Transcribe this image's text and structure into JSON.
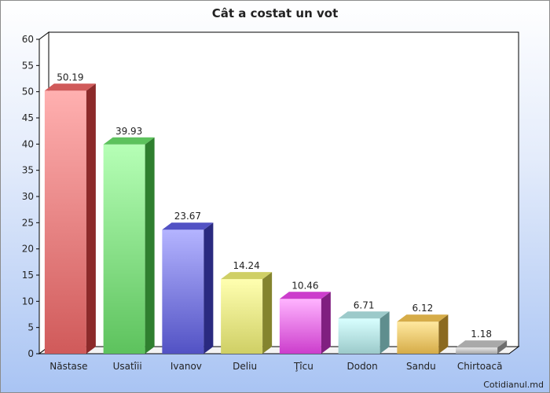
{
  "chart_data": {
    "type": "bar",
    "title": "Cât a costat un vot",
    "credit": "Cotidianul.md",
    "categories": [
      "Năstase",
      "Usatîii",
      "Ivanov",
      "Deliu",
      "Ţîcu",
      "Dodon",
      "Sandu",
      "Chirtoacă"
    ],
    "values": [
      50.19,
      39.93,
      23.67,
      14.24,
      10.46,
      6.71,
      6.12,
      1.18
    ],
    "value_labels": [
      "50.19",
      "39.93",
      "23.67",
      "14.24",
      "10.46",
      "6.71",
      "6.12",
      "1.18"
    ],
    "ylim": [
      0,
      60
    ],
    "yticks": [
      "0",
      "5",
      "10",
      "15",
      "20",
      "25",
      "30",
      "35",
      "40",
      "45",
      "50",
      "55",
      "60"
    ],
    "xlabel": "",
    "ylabel": "",
    "grid": false,
    "colors": [
      {
        "light": "#ffb0b0",
        "main": "#d05a5a",
        "dark": "#8c2a2a"
      },
      {
        "light": "#b6ffb6",
        "main": "#5dc25d",
        "dark": "#2f7f2f"
      },
      {
        "light": "#b4b4ff",
        "main": "#5252c4",
        "dark": "#2a2a80"
      },
      {
        "light": "#ffffb0",
        "main": "#cfcf65",
        "dark": "#84842e"
      },
      {
        "light": "#ffb4ff",
        "main": "#cc3dcc",
        "dark": "#801f80"
      },
      {
        "light": "#d8ffff",
        "main": "#9ccaca",
        "dark": "#5f8e8e"
      },
      {
        "light": "#ffe9a0",
        "main": "#d6ac48",
        "dark": "#8b6a20"
      },
      {
        "light": "#e6e6e6",
        "main": "#a9a9a9",
        "dark": "#6d6d6d"
      }
    ]
  }
}
